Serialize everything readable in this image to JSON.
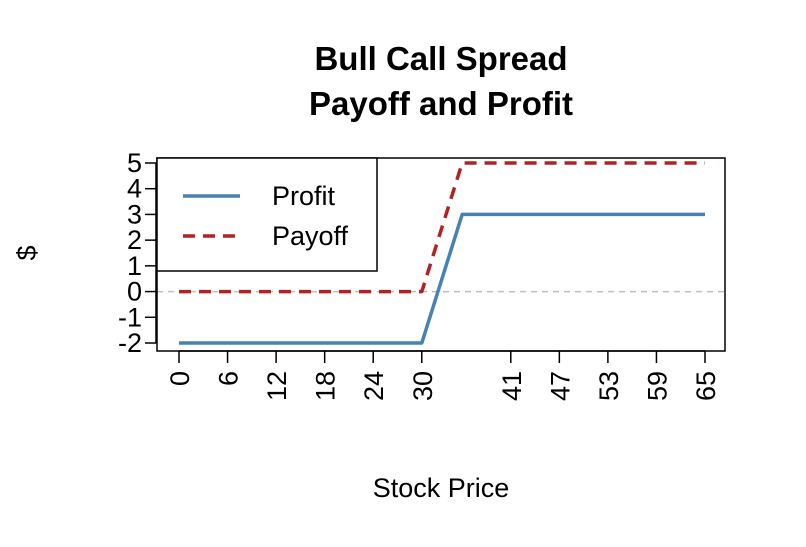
{
  "chart_data": {
    "type": "line",
    "title_line1": "Bull Call Spread",
    "title_line2": "Payoff and Profit",
    "xlabel": "Stock Price",
    "ylabel": "$",
    "xlim": [
      0,
      65
    ],
    "ylim": [
      -2,
      5
    ],
    "x_ticks": [
      0,
      6,
      12,
      18,
      24,
      30,
      41,
      47,
      53,
      59,
      65
    ],
    "x_tick_labels": [
      "0",
      "6",
      "12",
      "18",
      "24",
      "30",
      "41",
      "47",
      "53",
      "59",
      "65"
    ],
    "y_ticks": [
      -2,
      -1,
      0,
      1,
      2,
      3,
      4,
      5
    ],
    "y_tick_labels": [
      "-2",
      "-1",
      "0",
      "1",
      "2",
      "3",
      "4",
      "5"
    ],
    "reference_line": {
      "y": 0,
      "color": "#bebebe",
      "style": "dashed"
    },
    "legend_position": "top-left",
    "series": [
      {
        "name": "Profit",
        "color": "#4682b4",
        "style": "solid",
        "x": [
          0,
          30,
          35,
          65
        ],
        "y": [
          -2,
          -2,
          3,
          3
        ]
      },
      {
        "name": "Payoff",
        "color": "#b22222",
        "style": "dashed",
        "x": [
          0,
          30,
          35,
          65
        ],
        "y": [
          0,
          0,
          5,
          5
        ]
      }
    ]
  }
}
